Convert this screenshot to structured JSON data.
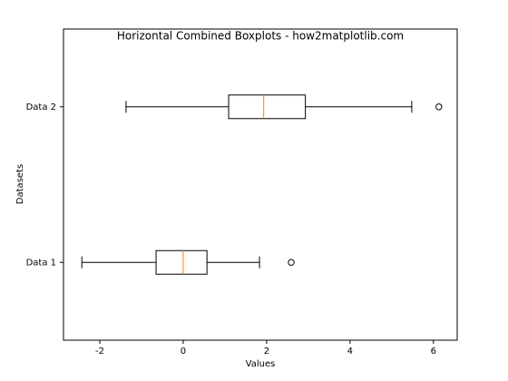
{
  "chart_data": {
    "type": "boxplot",
    "title": "Horizontal Combined Boxplots - how2matplotlib.com",
    "x_label": "Values",
    "y_label": "Datasets",
    "categories": [
      "Data 1",
      "Data 2"
    ],
    "boxes": [
      {
        "whislo": -2.43,
        "q1": -0.65,
        "med": 0,
        "q3": 0.57,
        "whishi": 1.83,
        "fliers": [
          2.59
        ]
      },
      {
        "whislo": -1.37,
        "q1": 1.09,
        "med": 1.93,
        "q3": 2.93,
        "whishi": 5.48,
        "fliers": [
          6.13
        ]
      }
    ],
    "color": "#000000",
    "median_color": "#ff7f0e",
    "xlim": [
      -2.87,
      6.57
    ],
    "xticks": [
      -2,
      0,
      2,
      4,
      6
    ]
  }
}
